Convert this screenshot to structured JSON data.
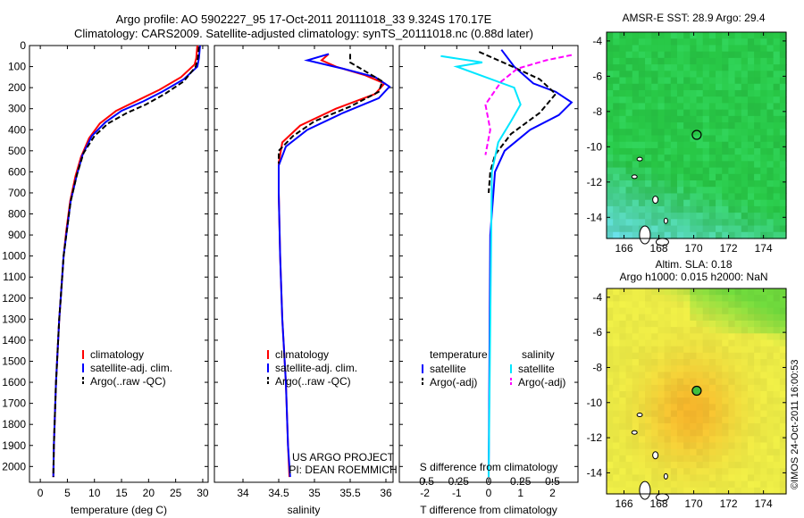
{
  "header": {
    "line1": "Argo profile: AO 5902227_95 17-Oct-2011 20111018_33 9.324S 170.17E",
    "line2": "Climatology: CARS2009. Satellite-adjusted climatology: synTS_20111018.nc (0.88d later)"
  },
  "credit": {
    "line1": "US ARGO PROJECT",
    "line2": "PI: DEAN ROEMMICH"
  },
  "stamp": "©IMOS 24-Oct-2011 16:00:53",
  "colors": {
    "climatology": "#ff0000",
    "satellite": "#0000ff",
    "argo": "#000000",
    "sat_salinity": "#00e6ff",
    "argo_salinity": "#ff00ff"
  },
  "chart_data": [
    {
      "type": "line",
      "xlabel": "temperature (deg C)",
      "xlim": [
        -2,
        31
      ],
      "xticks": [
        0,
        5,
        10,
        15,
        20,
        25,
        30
      ],
      "ylim": [
        2075,
        0
      ],
      "yticks": [
        0,
        100,
        200,
        300,
        400,
        500,
        600,
        700,
        800,
        900,
        1000,
        1100,
        1200,
        1300,
        1400,
        1500,
        1600,
        1700,
        1800,
        1900,
        2000
      ],
      "legend": [
        "climatology",
        "satellite-adj. clim.",
        "Argo(..raw -QC)"
      ],
      "series": [
        {
          "name": "climatology",
          "color": "#ff0000",
          "dash": "",
          "points": [
            [
              29,
              0
            ],
            [
              28.8,
              60
            ],
            [
              28.5,
              90
            ],
            [
              26,
              150
            ],
            [
              22,
              210
            ],
            [
              18,
              260
            ],
            [
              14,
              310
            ],
            [
              11,
              370
            ],
            [
              9,
              440
            ],
            [
              7.5,
              530
            ],
            [
              6.5,
              620
            ],
            [
              5.5,
              740
            ],
            [
              4.8,
              880
            ],
            [
              4.3,
              1000
            ],
            [
              3.9,
              1150
            ],
            [
              3.5,
              1300
            ],
            [
              3.2,
              1450
            ],
            [
              2.9,
              1600
            ],
            [
              2.7,
              1750
            ],
            [
              2.5,
              1900
            ],
            [
              2.4,
              2050
            ]
          ]
        },
        {
          "name": "satellite-adj. clim.",
          "color": "#0000ff",
          "dash": "",
          "points": [
            [
              29.5,
              0
            ],
            [
              29.3,
              60
            ],
            [
              29,
              100
            ],
            [
              26.5,
              160
            ],
            [
              22.5,
              220
            ],
            [
              19,
              265
            ],
            [
              15,
              310
            ],
            [
              12,
              365
            ],
            [
              9.5,
              430
            ],
            [
              7.8,
              520
            ],
            [
              6.7,
              620
            ],
            [
              5.6,
              740
            ],
            [
              4.9,
              880
            ],
            [
              4.3,
              1000
            ],
            [
              3.9,
              1150
            ],
            [
              3.5,
              1300
            ],
            [
              3.2,
              1450
            ],
            [
              2.9,
              1600
            ],
            [
              2.7,
              1750
            ],
            [
              2.5,
              1900
            ],
            [
              2.4,
              2050
            ]
          ]
        },
        {
          "name": "Argo(..raw -QC)",
          "color": "#000000",
          "dash": "6,3",
          "points": [
            [
              29.3,
              5
            ],
            [
              29.1,
              60
            ],
            [
              28.7,
              100
            ],
            [
              26.5,
              170
            ],
            [
              23,
              230
            ],
            [
              19.5,
              280
            ],
            [
              16,
              320
            ],
            [
              12.5,
              370
            ],
            [
              10,
              430
            ],
            [
              8,
              510
            ],
            [
              6.8,
              610
            ],
            [
              5.6,
              740
            ],
            [
              4.9,
              880
            ],
            [
              4.3,
              1000
            ],
            [
              3.9,
              1150
            ],
            [
              3.5,
              1300
            ],
            [
              3.2,
              1450
            ],
            [
              2.9,
              1600
            ],
            [
              2.7,
              1750
            ],
            [
              2.5,
              1900
            ],
            [
              2.4,
              2050
            ]
          ]
        }
      ]
    },
    {
      "type": "line",
      "xlabel": "salinity",
      "xlim": [
        33.6,
        36.1
      ],
      "xticks": [
        34,
        34.5,
        35,
        35.5,
        36
      ],
      "ylim": [
        2075,
        0
      ],
      "legend": [
        "climatology",
        "satellite-adj. clim.",
        "Argo(..raw -QC)"
      ],
      "series": [
        {
          "name": "climatology",
          "color": "#ff0000",
          "dash": "",
          "points": [
            [
              35.2,
              40
            ],
            [
              35.1,
              70
            ],
            [
              35.3,
              100
            ],
            [
              35.7,
              140
            ],
            [
              35.98,
              180
            ],
            [
              35.85,
              230
            ],
            [
              35.3,
              300
            ],
            [
              34.8,
              380
            ],
            [
              34.55,
              460
            ],
            [
              34.5,
              560
            ],
            [
              34.5,
              700
            ],
            [
              34.52,
              1000
            ],
            [
              34.55,
              1300
            ],
            [
              34.6,
              1600
            ],
            [
              34.63,
              1900
            ],
            [
              34.65,
              2050
            ]
          ]
        },
        {
          "name": "satellite-adj. clim.",
          "color": "#0000ff",
          "dash": "",
          "points": [
            [
              35.2,
              40
            ],
            [
              34.9,
              70
            ],
            [
              35.4,
              110
            ],
            [
              35.85,
              150
            ],
            [
              36.05,
              195
            ],
            [
              35.9,
              250
            ],
            [
              35.4,
              320
            ],
            [
              34.9,
              400
            ],
            [
              34.6,
              480
            ],
            [
              34.5,
              570
            ],
            [
              34.5,
              700
            ],
            [
              34.52,
              1000
            ],
            [
              34.55,
              1300
            ],
            [
              34.6,
              1600
            ],
            [
              34.63,
              1900
            ],
            [
              34.66,
              2050
            ]
          ]
        },
        {
          "name": "Argo(..raw -QC)",
          "color": "#000000",
          "dash": "6,3",
          "points": [
            [
              35.5,
              40
            ],
            [
              35.5,
              80
            ],
            [
              35.7,
              120
            ],
            [
              35.95,
              170
            ],
            [
              35.9,
              220
            ],
            [
              35.5,
              290
            ],
            [
              35.0,
              360
            ],
            [
              34.7,
              430
            ],
            [
              34.5,
              500
            ],
            [
              34.5,
              560
            ]
          ]
        }
      ]
    },
    {
      "type": "line",
      "xlabel": "T difference from climatology",
      "xlabel_top": "S difference from climatology",
      "xlim": [
        -2.8,
        2.8
      ],
      "xticks": [
        -2,
        -1,
        0,
        1,
        2
      ],
      "xticks_top_labels": [
        "-0.5",
        "-0.25",
        "0",
        "0.25",
        "0.5"
      ],
      "xticks_top_pos": [
        -2,
        -1,
        0,
        1,
        2
      ],
      "legend_headers": [
        "temperature",
        "salinity"
      ],
      "legend": [
        "satellite",
        "Argo(-adj)",
        "satellite",
        "Argo(-adj)"
      ],
      "series": [
        {
          "name": "satellite",
          "group": "temperature",
          "color": "#0000ff",
          "dash": "",
          "points": [
            [
              0.4,
              20
            ],
            [
              0.8,
              100
            ],
            [
              1.4,
              180
            ],
            [
              2.1,
              220
            ],
            [
              2.6,
              270
            ],
            [
              2.2,
              330
            ],
            [
              1.3,
              400
            ],
            [
              0.5,
              500
            ],
            [
              0.2,
              600
            ],
            [
              0.05,
              900
            ],
            [
              0,
              2050
            ]
          ]
        },
        {
          "name": "Argo(-adj)",
          "group": "temperature",
          "color": "#000000",
          "dash": "6,3",
          "points": [
            [
              -0.3,
              30
            ],
            [
              0.6,
              90
            ],
            [
              1.6,
              160
            ],
            [
              2.1,
              230
            ],
            [
              1.6,
              320
            ],
            [
              0.7,
              420
            ],
            [
              0.2,
              520
            ],
            [
              0.05,
              600
            ],
            [
              0,
              700
            ]
          ]
        },
        {
          "name": "satellite",
          "group": "salinity",
          "color": "#00e6ff",
          "dash": "",
          "points": [
            [
              -1.5,
              50
            ],
            [
              -0.2,
              80
            ],
            [
              -1.0,
              100
            ],
            [
              0.8,
              200
            ],
            [
              1.0,
              280
            ],
            [
              0.7,
              360
            ],
            [
              0.3,
              460
            ],
            [
              0.1,
              600
            ],
            [
              0,
              2050
            ]
          ]
        },
        {
          "name": "Argo(-adj)",
          "group": "salinity",
          "color": "#ff00ff",
          "dash": "6,3",
          "points": [
            [
              2.6,
              45
            ],
            [
              1.8,
              70
            ],
            [
              0.9,
              110
            ],
            [
              0.4,
              170
            ],
            [
              -0.1,
              280
            ],
            [
              0.05,
              400
            ],
            [
              -0.1,
              520
            ]
          ]
        }
      ]
    },
    {
      "type": "heatmap",
      "title": "AMSR-E SST: 28.9 Argo: 29.4",
      "xticks": [
        166,
        168,
        170,
        172,
        174
      ],
      "yticks": [
        -4,
        -6,
        -8,
        -10,
        -12,
        -14
      ],
      "xlim": [
        165,
        175.3
      ],
      "ylim": [
        -15.2,
        -3.5
      ],
      "marker": [
        170.17,
        -9.324
      ]
    },
    {
      "type": "heatmap",
      "title": "Altim. SLA: 0.18",
      "subtitle": "Argo h1000: 0.015 h2000: NaN",
      "xticks": [
        166,
        168,
        170,
        172,
        174
      ],
      "yticks": [
        -4,
        -6,
        -8,
        -10,
        -12,
        -14
      ],
      "xlim": [
        165,
        175.3
      ],
      "ylim": [
        -15.2,
        -3.5
      ],
      "marker": [
        170.17,
        -9.324
      ]
    }
  ]
}
